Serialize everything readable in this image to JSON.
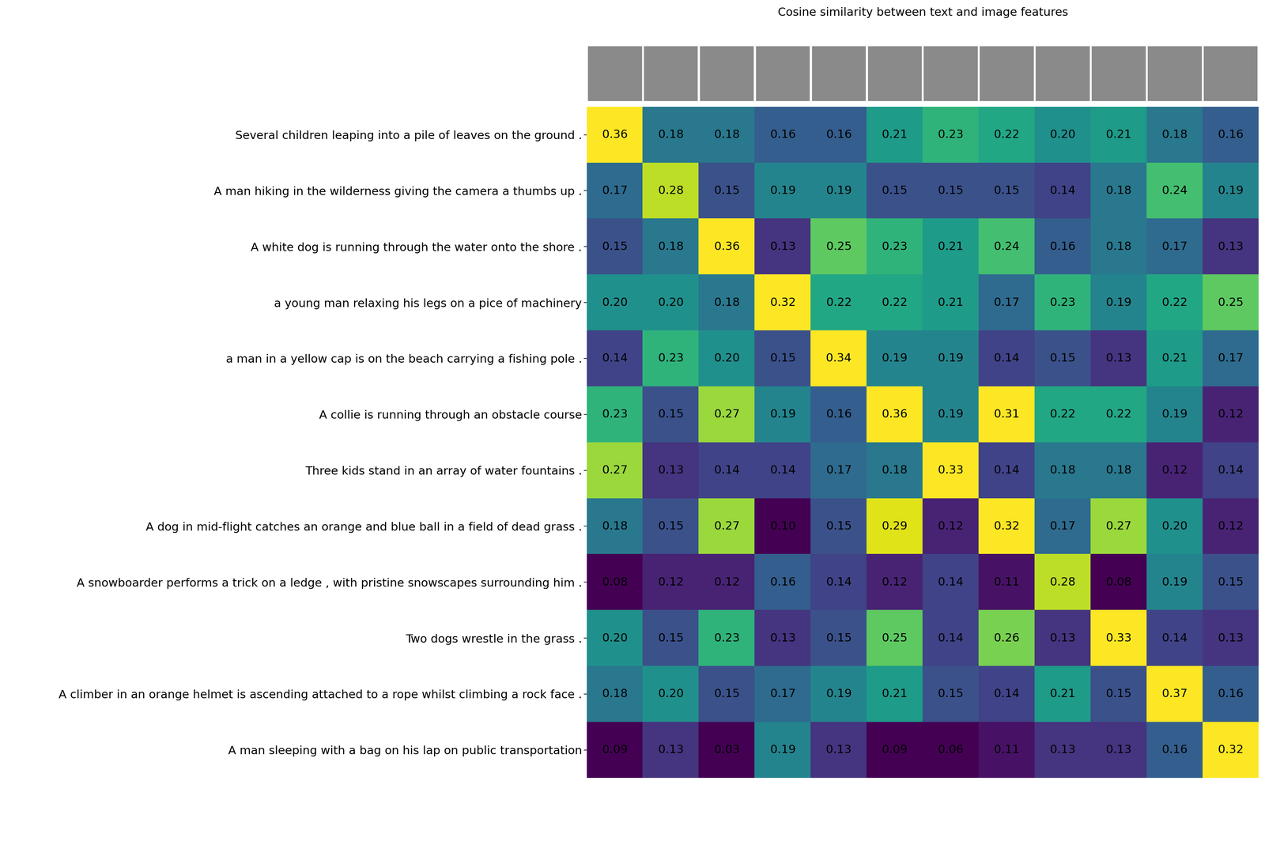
{
  "chart_data": {
    "type": "heatmap",
    "title": "Cosine similarity between text and image features",
    "rows": [
      "Several children leaping into a pile of leaves on the ground .",
      "A man hiking in the wilderness giving the camera a thumbs up .",
      "A white dog is running through the water onto the shore .",
      "a young man relaxing his legs on a pice of machinery",
      "a man in a yellow cap is on the beach carrying a fishing pole .",
      "A collie is running through an obstacle course",
      "Three kids stand in an array of water fountains .",
      "A dog in mid-flight catches an orange and blue ball in a field of dead grass .",
      "A snowboarder performs a trick on a ledge , with pristine snowscapes surrounding him .",
      "Two dogs wrestle in the grass .",
      "A climber in an orange helmet is ascending attached to a rope whilst climbing a rock face .",
      "A man sleeping with a bag on his lap on public transportation"
    ],
    "color": "viridis",
    "color_range": [
      0.1,
      0.3
    ],
    "data_labels": true,
    "tick_labels": "y",
    "values": [
      [
        0.36,
        0.18,
        0.18,
        0.16,
        0.16,
        0.21,
        0.23,
        0.22,
        0.2,
        0.21,
        0.18,
        0.16
      ],
      [
        0.17,
        0.28,
        0.15,
        0.19,
        0.19,
        0.15,
        0.15,
        0.15,
        0.14,
        0.18,
        0.24,
        0.19
      ],
      [
        0.15,
        0.18,
        0.36,
        0.13,
        0.25,
        0.23,
        0.21,
        0.24,
        0.16,
        0.18,
        0.17,
        0.13
      ],
      [
        0.2,
        0.2,
        0.18,
        0.32,
        0.22,
        0.22,
        0.21,
        0.17,
        0.23,
        0.19,
        0.22,
        0.25
      ],
      [
        0.14,
        0.23,
        0.2,
        0.15,
        0.34,
        0.19,
        0.19,
        0.14,
        0.15,
        0.13,
        0.21,
        0.17
      ],
      [
        0.23,
        0.15,
        0.27,
        0.19,
        0.16,
        0.36,
        0.19,
        0.31,
        0.22,
        0.22,
        0.19,
        0.12
      ],
      [
        0.27,
        0.13,
        0.14,
        0.14,
        0.17,
        0.18,
        0.33,
        0.14,
        0.18,
        0.18,
        0.12,
        0.14
      ],
      [
        0.18,
        0.15,
        0.27,
        0.1,
        0.15,
        0.29,
        0.12,
        0.32,
        0.17,
        0.27,
        0.2,
        0.12
      ],
      [
        0.08,
        0.12,
        0.12,
        0.16,
        0.14,
        0.12,
        0.14,
        0.11,
        0.28,
        0.08,
        0.19,
        0.15
      ],
      [
        0.2,
        0.15,
        0.23,
        0.13,
        0.15,
        0.25,
        0.14,
        0.26,
        0.13,
        0.33,
        0.14,
        0.13
      ],
      [
        0.18,
        0.2,
        0.15,
        0.17,
        0.19,
        0.21,
        0.15,
        0.14,
        0.21,
        0.15,
        0.37,
        0.16
      ],
      [
        0.09,
        0.13,
        0.03,
        0.19,
        0.13,
        0.09,
        0.06,
        0.11,
        0.13,
        0.13,
        0.16,
        0.32
      ]
    ],
    "value_labels": [
      [
        "0.36",
        "0.18",
        "0.18",
        "0.16",
        "0.16",
        "0.21",
        "0.23",
        "0.22",
        "0.20",
        "0.21",
        "0.18",
        "0.16"
      ],
      [
        "0.17",
        "0.28",
        "0.15",
        "0.19",
        "0.19",
        "0.15",
        "0.15",
        "0.15",
        "0.14",
        "0.18",
        "0.24",
        "0.19"
      ],
      [
        "0.15",
        "0.18",
        "0.36",
        "0.13",
        "0.25",
        "0.23",
        "0.21",
        "0.24",
        "0.16",
        "0.18",
        "0.17",
        "0.13"
      ],
      [
        "0.20",
        "0.20",
        "0.18",
        "0.32",
        "0.22",
        "0.22",
        "0.21",
        "0.17",
        "0.23",
        "0.19",
        "0.22",
        "0.25"
      ],
      [
        "0.14",
        "0.23",
        "0.20",
        "0.15",
        "0.34",
        "0.19",
        "0.19",
        "0.14",
        "0.15",
        "0.13",
        "0.21",
        "0.17"
      ],
      [
        "0.23",
        "0.15",
        "0.27",
        "0.19",
        "0.16",
        "0.36",
        "0.19",
        "0.31",
        "0.22",
        "0.22",
        "0.19",
        "0.12"
      ],
      [
        "0.27",
        "0.13",
        "0.14",
        "0.14",
        "0.17",
        "0.18",
        "0.33",
        "0.14",
        "0.18",
        "0.18",
        "0.12",
        "0.14"
      ],
      [
        "0.18",
        "0.15",
        "0.27",
        "0.10",
        "0.15",
        "0.29",
        "0.12",
        "0.32",
        "0.17",
        "0.27",
        "0.20",
        "0.12"
      ],
      [
        "0.08",
        "0.12",
        "0.12",
        "0.16",
        "0.14",
        "0.12",
        "0.14",
        "0.11",
        "0.28",
        "0.08",
        "0.19",
        "0.15"
      ],
      [
        "0.20",
        "0.15",
        "0.23",
        "0.13",
        "0.15",
        "0.25",
        "0.14",
        "0.26",
        "0.13",
        "0.33",
        "0.14",
        "0.13"
      ],
      [
        "0.18",
        "0.20",
        "0.15",
        "0.17",
        "0.19",
        "0.21",
        "0.15",
        "0.14",
        "0.21",
        "0.15",
        "0.37",
        "0.16"
      ],
      [
        "0.09",
        "0.13",
        "0.03",
        "0.19",
        "0.13",
        "0.09",
        "0.06",
        "0.11",
        "0.13",
        "0.13",
        "0.16",
        "0.32"
      ]
    ]
  }
}
